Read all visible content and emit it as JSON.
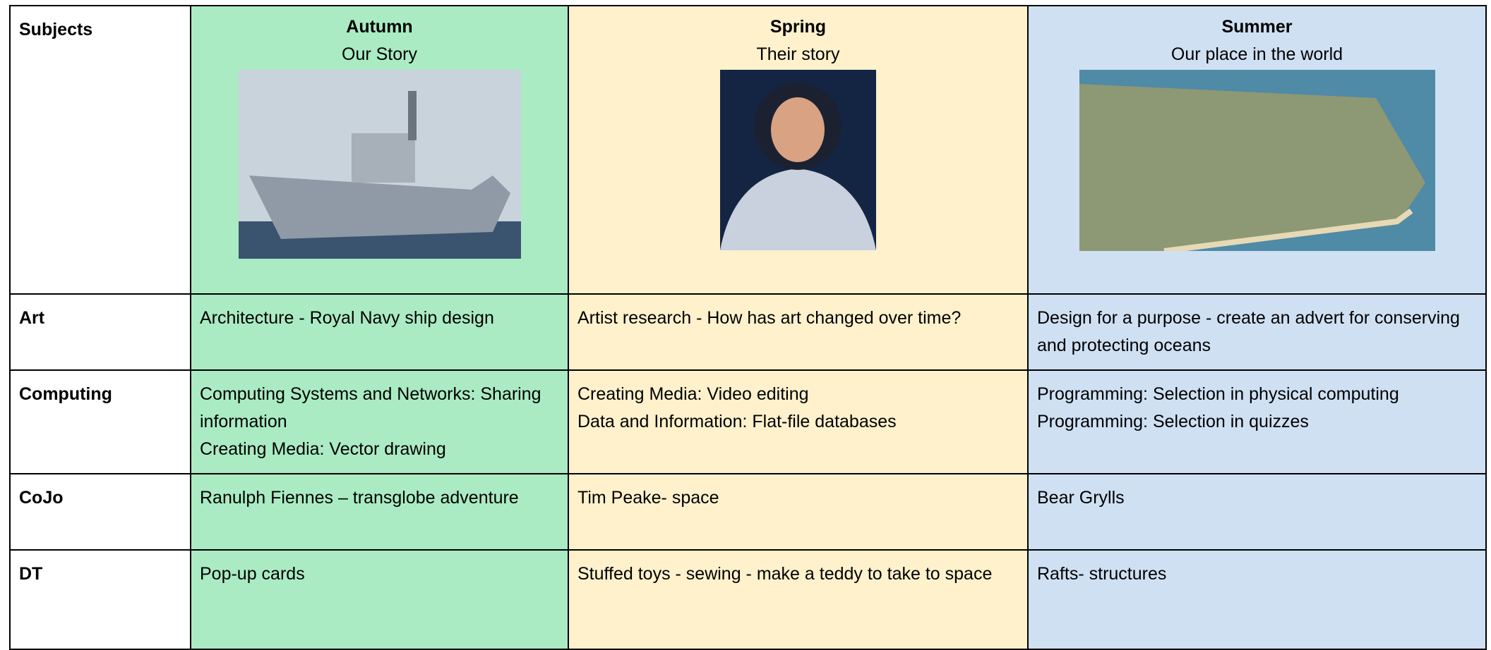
{
  "header": {
    "subjects": "Subjects",
    "terms": [
      {
        "season": "Autumn",
        "theme": "Our Story"
      },
      {
        "season": "Spring",
        "theme": "Their story"
      },
      {
        "season": "Summer",
        "theme": "Our place in the world"
      }
    ]
  },
  "rows": [
    {
      "subject": "Art",
      "cells": [
        [
          "Architecture - Royal Navy ship design"
        ],
        [
          "Artist research - How has art changed over time?"
        ],
        [
          "Design for a purpose - create an advert for conserving and protecting oceans"
        ]
      ]
    },
    {
      "subject": "Computing",
      "cells": [
        [
          "Computing Systems and Networks: Sharing information",
          "Creating Media: Vector drawing"
        ],
        [
          "Creating Media: Video editing",
          "Data and Information: Flat-file databases"
        ],
        [
          "Programming: Selection in physical computing",
          "Programming: Selection in quizzes"
        ]
      ]
    },
    {
      "subject": "CoJo",
      "cells": [
        [
          "Ranulph Fiennes – transglobe adventure"
        ],
        [
          "Tim Peake- space"
        ],
        [
          "Bear Grylls"
        ]
      ]
    },
    {
      "subject": "DT",
      "cells": [
        [
          "Pop-up cards"
        ],
        [
          "Stuffed toys - sewing - make a teddy to take to space"
        ],
        [
          "Rafts- structures"
        ]
      ]
    }
  ]
}
